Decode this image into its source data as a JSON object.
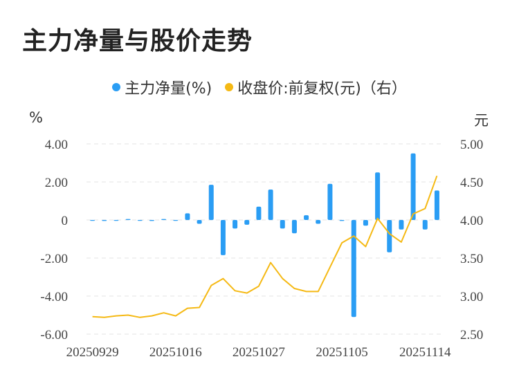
{
  "title": "主力净量与股价走势",
  "legend": {
    "series1": "主力净量(%)",
    "series2": "收盘价:前复权(元)（右）"
  },
  "left_unit": "%",
  "right_unit": "元",
  "colors": {
    "bar": "#2a9df4",
    "line": "#f5b914",
    "grid": "#e3e3e3"
  },
  "chart_data": {
    "type": "bar+line",
    "x_tick_labels": [
      "20250929",
      "20251016",
      "20251027",
      "20251105",
      "20251114"
    ],
    "left_axis": {
      "ticks": [
        "4.00",
        "2.00",
        "0",
        "-2.00",
        "-4.00",
        "-6.00"
      ],
      "ylim": [
        -6,
        4
      ]
    },
    "right_axis": {
      "ticks": [
        "5.00",
        "4.50",
        "4.00",
        "3.50",
        "3.00",
        "2.50"
      ],
      "ylim": [
        2.5,
        5.0
      ]
    },
    "series": [
      {
        "name": "主力净量(%)",
        "type": "bar",
        "values": [
          0.0,
          -0.05,
          -0.03,
          0.05,
          0.0,
          -0.05,
          0.05,
          -0.03,
          0.35,
          -0.2,
          1.85,
          -1.85,
          -0.45,
          -0.25,
          0.7,
          1.6,
          -0.45,
          -0.7,
          0.25,
          -0.2,
          1.9,
          -0.05,
          -5.1,
          -0.3,
          2.5,
          -1.7,
          -0.5,
          3.5,
          -0.5,
          1.55
        ]
      },
      {
        "name": "收盘价:前复权(元)（右）",
        "type": "line",
        "values": [
          2.73,
          2.72,
          2.74,
          2.75,
          2.72,
          2.74,
          2.78,
          2.74,
          2.84,
          2.85,
          3.14,
          3.23,
          3.07,
          3.04,
          3.13,
          3.44,
          3.23,
          3.1,
          3.06,
          3.06,
          3.38,
          3.7,
          3.79,
          3.65,
          4.02,
          3.82,
          3.71,
          4.08,
          4.15,
          4.58
        ]
      }
    ]
  }
}
